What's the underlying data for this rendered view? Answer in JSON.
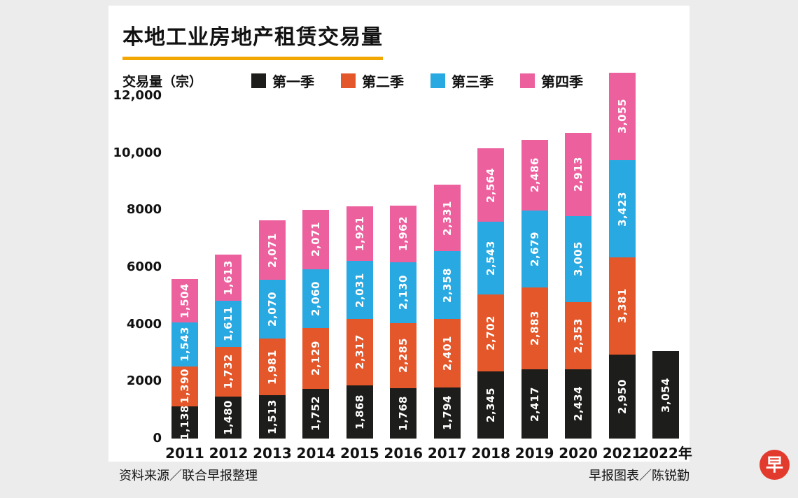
{
  "page": {
    "background": "#ececec",
    "panel_background": "#ffffff"
  },
  "header": {
    "title": "本地工业房地产租赁交易量",
    "title_underline_color": "#f2a702",
    "unit_label": "交易量（宗）"
  },
  "footer": {
    "source_left": "资料来源／联合早报整理",
    "credit_right": "早报图表／陈锐勤"
  },
  "logo": {
    "glyph": "早",
    "color": "#e23b2e"
  },
  "chart_data": {
    "type": "bar",
    "stacked": true,
    "title": "本地工业房地产租赁交易量",
    "ylabel": "交易量（宗）",
    "xlabel": "",
    "ylim": [
      0,
      12000
    ],
    "grid": false,
    "legend_position": "top",
    "value_label_rotation": -90,
    "y_ticks": [
      {
        "value": 0,
        "label": "0"
      },
      {
        "value": 2000,
        "label": "2000"
      },
      {
        "value": 4000,
        "label": "4000"
      },
      {
        "value": 6000,
        "label": "6000"
      },
      {
        "value": 8000,
        "label": "8000"
      },
      {
        "value": 10000,
        "label": "10,000"
      },
      {
        "value": 12000,
        "label": "12,000"
      }
    ],
    "categories": [
      "2011",
      "2012",
      "2013",
      "2014",
      "2015",
      "2016",
      "2017",
      "2018",
      "2019",
      "2020",
      "2021",
      "2022年"
    ],
    "series": [
      {
        "name": "第一季",
        "color": "#1d1d1b",
        "values": [
          1138,
          1480,
          1513,
          1752,
          1868,
          1768,
          1794,
          2345,
          2417,
          2434,
          2950,
          3054
        ]
      },
      {
        "name": "第二季",
        "color": "#e4572b",
        "values": [
          1390,
          1732,
          1981,
          2129,
          2317,
          2285,
          2401,
          2702,
          2883,
          2353,
          3381,
          null
        ]
      },
      {
        "name": "第三季",
        "color": "#29a9e1",
        "values": [
          1543,
          1611,
          2070,
          2060,
          2031,
          2130,
          2358,
          2543,
          2679,
          3005,
          3423,
          null
        ]
      },
      {
        "name": "第四季",
        "color": "#ed609e",
        "values": [
          1504,
          1613,
          2071,
          2071,
          1921,
          1962,
          2331,
          2564,
          2486,
          2913,
          3055,
          null
        ]
      }
    ]
  }
}
